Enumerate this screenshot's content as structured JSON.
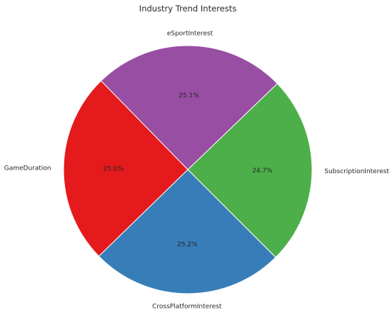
{
  "chart_data": {
    "type": "pie",
    "title": "Industry Trend Interests",
    "categories": [
      "SubscriptionInterest",
      "eSportInterest",
      "GameDuration",
      "CrossPlatformInterest"
    ],
    "values": [
      24.7,
      25.1,
      25.0,
      25.2
    ],
    "percent_labels": [
      "24.7%",
      "25.1%",
      "25.0%",
      "25.2%"
    ],
    "colors": [
      "#4daf4a",
      "#984ea3",
      "#e41a1c",
      "#377eb8"
    ],
    "start_angle_deg": -45,
    "direction": "counterclockwise",
    "legend": "none"
  }
}
